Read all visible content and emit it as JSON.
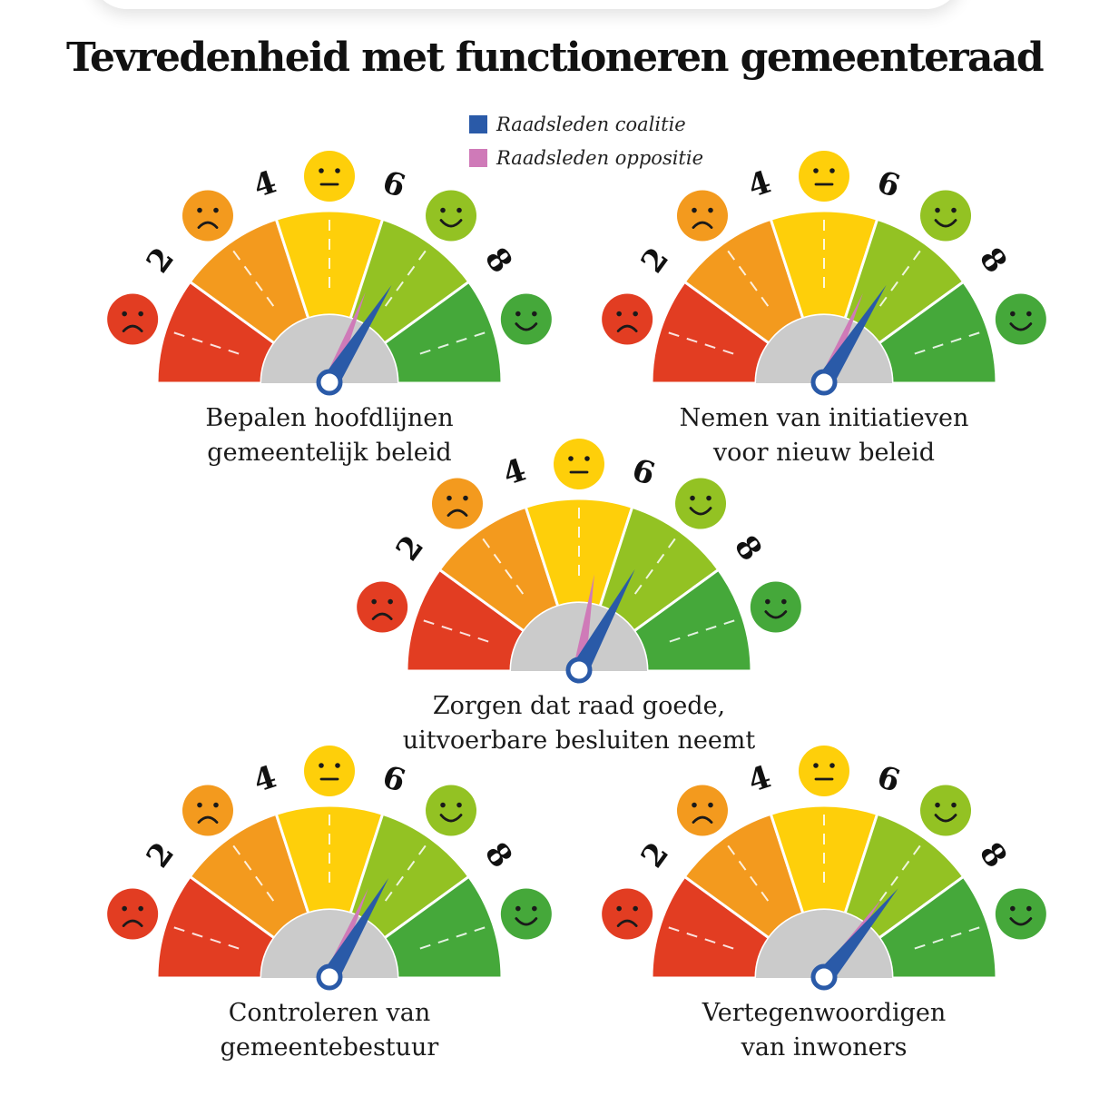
{
  "title": "Tevredenheid met functioneren gemeenteraad",
  "legend": [
    {
      "label": "Raadsleden coalitie",
      "color": "#2a5aa8"
    },
    {
      "label": "Raadsleden oppositie",
      "color": "#cf7ab8"
    }
  ],
  "scale": {
    "ticks": [
      "2",
      "4",
      "6",
      "8"
    ],
    "segment_colors": [
      "#e23d22",
      "#f39a1e",
      "#fecf0a",
      "#93c223",
      "#45a83a"
    ],
    "faces": [
      {
        "mood": "sad-face-icon",
        "color": "#e23d22"
      },
      {
        "mood": "sad-face-icon",
        "color": "#f39a1e"
      },
      {
        "mood": "neutral-face-icon",
        "color": "#fecf0a"
      },
      {
        "mood": "happy-face-icon",
        "color": "#93c223"
      },
      {
        "mood": "happy-face-icon",
        "color": "#45a83a"
      }
    ]
  },
  "chart_data": {
    "type": "gauge",
    "title": "Tevredenheid met functioneren gemeenteraad",
    "scale_min": 0,
    "scale_max": 10,
    "series": [
      {
        "name": "Raadsleden coalitie",
        "color": "#2a5aa8"
      },
      {
        "name": "Raadsleden oppositie",
        "color": "#cf7ab8"
      }
    ],
    "gauges": [
      {
        "label_lines": [
          "Bepalen hoofdlijnen",
          "gemeentelijk beleid"
        ],
        "coalitie": 6.8,
        "oppositie": 6.2
      },
      {
        "label_lines": [
          "Nemen van initiatieven",
          "voor nieuw beleid"
        ],
        "coalitie": 6.8,
        "oppositie": 6.3
      },
      {
        "label_lines": [
          "Zorgen dat raad goede,",
          "uitvoerbare besluiten neemt"
        ],
        "coalitie": 6.6,
        "oppositie": 5.5
      },
      {
        "label_lines": [
          "Controleren van",
          "gemeentebestuur"
        ],
        "coalitie": 6.7,
        "oppositie": 6.3
      },
      {
        "label_lines": [
          "Vertegenwoordigen",
          "van inwoners"
        ],
        "coalitie": 7.2,
        "oppositie": 7.0
      }
    ]
  }
}
